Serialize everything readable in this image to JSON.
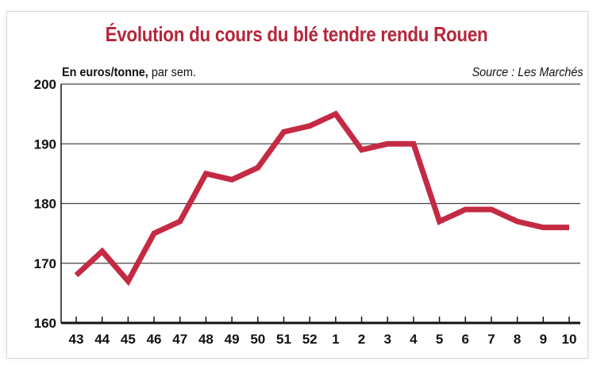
{
  "colors": {
    "title": "#b5263a",
    "line": "#c42a43",
    "grid": "#444444",
    "axis": "#111111"
  },
  "chart_data": {
    "type": "line",
    "title": "Évolution du cours du blé tendre rendu Rouen",
    "unit_bold": "En euros/tonne,",
    "unit_rest": " par sem.",
    "source": "Source : Les Marchés",
    "categories": [
      "43",
      "44",
      "45",
      "46",
      "47",
      "48",
      "49",
      "50",
      "51",
      "52",
      "1",
      "2",
      "3",
      "4",
      "5",
      "6",
      "7",
      "8",
      "9",
      "10"
    ],
    "values": [
      168,
      172,
      167,
      175,
      177,
      185,
      184,
      186,
      192,
      193,
      195,
      189,
      190,
      190,
      177,
      179,
      179,
      177,
      176,
      176
    ],
    "ylim": [
      160,
      200
    ],
    "yticks": [
      160,
      170,
      180,
      190,
      200
    ],
    "grid": true
  }
}
